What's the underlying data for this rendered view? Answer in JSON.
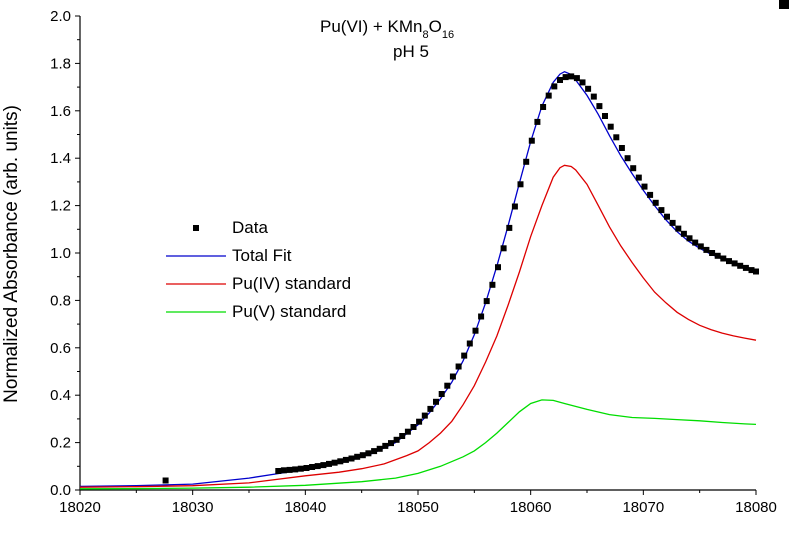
{
  "chart_data": {
    "type": "line",
    "title_main": "Pu(VI) + KMn",
    "title_sub8": "8",
    "title_O": "O",
    "title_sub16": "16",
    "subtitle": "pH 5",
    "xlabel": "",
    "ylabel": "Normalized Absorbance (arb. units)",
    "xlim": [
      18020,
      18080
    ],
    "ylim": [
      0.0,
      2.0
    ],
    "x_ticks": [
      18020,
      18030,
      18040,
      18050,
      18060,
      18070,
      18080
    ],
    "x_tick_labels": [
      "18020",
      "18030",
      "18040",
      "18050",
      "18060",
      "18070",
      "18080"
    ],
    "y_ticks": [
      0.0,
      0.2,
      0.4,
      0.6,
      0.8,
      1.0,
      1.2,
      1.4,
      1.6,
      1.8,
      2.0
    ],
    "y_tick_labels": [
      "0.0",
      "0.2",
      "0.4",
      "0.6",
      "0.8",
      "1.0",
      "1.2",
      "1.4",
      "1.6",
      "1.8",
      "2.0"
    ],
    "legend_position": "center-left",
    "series": [
      {
        "name": "Data",
        "kind": "scatter",
        "color": "#000000",
        "points": [
          [
            18027.6,
            0.04
          ],
          [
            18037.6,
            0.08
          ],
          [
            18038.1,
            0.083
          ],
          [
            18038.6,
            0.085
          ],
          [
            18039.1,
            0.087
          ],
          [
            18039.6,
            0.09
          ],
          [
            18040.1,
            0.093
          ],
          [
            18040.6,
            0.097
          ],
          [
            18041.1,
            0.101
          ],
          [
            18041.6,
            0.105
          ],
          [
            18042.1,
            0.11
          ],
          [
            18042.6,
            0.115
          ],
          [
            18043.1,
            0.121
          ],
          [
            18043.6,
            0.127
          ],
          [
            18044.1,
            0.133
          ],
          [
            18044.6,
            0.14
          ],
          [
            18045.1,
            0.147
          ],
          [
            18045.6,
            0.155
          ],
          [
            18046.1,
            0.164
          ],
          [
            18046.6,
            0.174
          ],
          [
            18047.1,
            0.186
          ],
          [
            18047.6,
            0.198
          ],
          [
            18048.1,
            0.212
          ],
          [
            18048.6,
            0.228
          ],
          [
            18049.1,
            0.246
          ],
          [
            18049.6,
            0.266
          ],
          [
            18050.1,
            0.288
          ],
          [
            18050.6,
            0.314
          ],
          [
            18051.1,
            0.342
          ],
          [
            18051.6,
            0.372
          ],
          [
            18052.1,
            0.405
          ],
          [
            18052.6,
            0.44
          ],
          [
            18053.1,
            0.479
          ],
          [
            18053.6,
            0.521
          ],
          [
            18054.1,
            0.567
          ],
          [
            18054.6,
            0.618
          ],
          [
            18055.1,
            0.672
          ],
          [
            18055.6,
            0.732
          ],
          [
            18056.1,
            0.797
          ],
          [
            18056.6,
            0.866
          ],
          [
            18057.1,
            0.94
          ],
          [
            18057.6,
            1.02
          ],
          [
            18058.1,
            1.106
          ],
          [
            18058.6,
            1.196
          ],
          [
            18059.1,
            1.29
          ],
          [
            18059.6,
            1.385
          ],
          [
            18060.1,
            1.474
          ],
          [
            18060.6,
            1.553
          ],
          [
            18061.1,
            1.616
          ],
          [
            18061.6,
            1.664
          ],
          [
            18062.1,
            1.703
          ],
          [
            18062.6,
            1.73
          ],
          [
            18063.1,
            1.742
          ],
          [
            18063.6,
            1.745
          ],
          [
            18064.1,
            1.738
          ],
          [
            18064.6,
            1.72
          ],
          [
            18065.1,
            1.693
          ],
          [
            18065.6,
            1.66
          ],
          [
            18066.1,
            1.62
          ],
          [
            18066.6,
            1.578
          ],
          [
            18067.1,
            1.533
          ],
          [
            18067.6,
            1.488
          ],
          [
            18068.1,
            1.443
          ],
          [
            18068.6,
            1.4
          ],
          [
            18069.1,
            1.358
          ],
          [
            18069.6,
            1.318
          ],
          [
            18070.1,
            1.28
          ],
          [
            18070.6,
            1.245
          ],
          [
            18071.1,
            1.212
          ],
          [
            18071.6,
            1.181
          ],
          [
            18072.1,
            1.153
          ],
          [
            18072.6,
            1.127
          ],
          [
            18073.1,
            1.103
          ],
          [
            18073.6,
            1.081
          ],
          [
            18074.1,
            1.062
          ],
          [
            18074.6,
            1.044
          ],
          [
            18075.1,
            1.028
          ],
          [
            18075.6,
            1.013
          ],
          [
            18076.1,
            1.0
          ],
          [
            18076.6,
            0.988
          ],
          [
            18077.1,
            0.977
          ],
          [
            18077.6,
            0.966
          ],
          [
            18078.1,
            0.956
          ],
          [
            18078.6,
            0.946
          ],
          [
            18079.1,
            0.937
          ],
          [
            18079.6,
            0.928
          ],
          [
            18080.0,
            0.922
          ]
        ]
      },
      {
        "name": "Total Fit",
        "kind": "line",
        "color": "#0000cc",
        "points": [
          [
            18020,
            0.015
          ],
          [
            18025,
            0.018
          ],
          [
            18030,
            0.025
          ],
          [
            18035,
            0.05
          ],
          [
            18038,
            0.072
          ],
          [
            18040,
            0.088
          ],
          [
            18042,
            0.103
          ],
          [
            18044,
            0.125
          ],
          [
            18046,
            0.155
          ],
          [
            18048,
            0.2
          ],
          [
            18050,
            0.275
          ],
          [
            18051,
            0.325
          ],
          [
            18052,
            0.385
          ],
          [
            18053,
            0.455
          ],
          [
            18054,
            0.545
          ],
          [
            18055,
            0.655
          ],
          [
            18056,
            0.79
          ],
          [
            18057,
            0.945
          ],
          [
            18058,
            1.115
          ],
          [
            18059,
            1.295
          ],
          [
            18060,
            1.47
          ],
          [
            18061,
            1.62
          ],
          [
            18062,
            1.72
          ],
          [
            18062.6,
            1.755
          ],
          [
            18063,
            1.765
          ],
          [
            18063.5,
            1.755
          ],
          [
            18064,
            1.73
          ],
          [
            18065,
            1.665
          ],
          [
            18066,
            1.585
          ],
          [
            18067,
            1.495
          ],
          [
            18068,
            1.41
          ],
          [
            18069,
            1.335
          ],
          [
            18070,
            1.265
          ],
          [
            18071,
            1.2
          ],
          [
            18072,
            1.14
          ],
          [
            18073,
            1.09
          ],
          [
            18074,
            1.05
          ],
          [
            18075,
            1.02
          ],
          [
            18076,
            0.995
          ],
          [
            18077,
            0.975
          ],
          [
            18078,
            0.955
          ],
          [
            18079,
            0.94
          ],
          [
            18080,
            0.925
          ]
        ]
      },
      {
        "name": "Pu(IV) standard",
        "kind": "line",
        "color": "#dd0000",
        "points": [
          [
            18020,
            0.012
          ],
          [
            18025,
            0.014
          ],
          [
            18030,
            0.018
          ],
          [
            18035,
            0.03
          ],
          [
            18040,
            0.06
          ],
          [
            18043,
            0.075
          ],
          [
            18045,
            0.09
          ],
          [
            18047,
            0.11
          ],
          [
            18049,
            0.145
          ],
          [
            18050,
            0.165
          ],
          [
            18051,
            0.2
          ],
          [
            18052,
            0.24
          ],
          [
            18053,
            0.29
          ],
          [
            18054,
            0.36
          ],
          [
            18055,
            0.44
          ],
          [
            18056,
            0.54
          ],
          [
            18057,
            0.65
          ],
          [
            18058,
            0.78
          ],
          [
            18059,
            0.92
          ],
          [
            18060,
            1.07
          ],
          [
            18061,
            1.2
          ],
          [
            18062,
            1.32
          ],
          [
            18062.6,
            1.36
          ],
          [
            18063,
            1.37
          ],
          [
            18063.6,
            1.365
          ],
          [
            18064,
            1.35
          ],
          [
            18065,
            1.29
          ],
          [
            18066,
            1.2
          ],
          [
            18067,
            1.11
          ],
          [
            18068,
            1.03
          ],
          [
            18069,
            0.96
          ],
          [
            18070,
            0.895
          ],
          [
            18071,
            0.835
          ],
          [
            18072,
            0.79
          ],
          [
            18073,
            0.75
          ],
          [
            18074,
            0.72
          ],
          [
            18075,
            0.695
          ],
          [
            18076,
            0.677
          ],
          [
            18077,
            0.662
          ],
          [
            18078,
            0.65
          ],
          [
            18079,
            0.641
          ],
          [
            18080,
            0.632
          ]
        ]
      },
      {
        "name": "Pu(V) standard",
        "kind": "line",
        "color": "#00dd00",
        "points": [
          [
            18020,
            0.005
          ],
          [
            18025,
            0.006
          ],
          [
            18030,
            0.008
          ],
          [
            18035,
            0.012
          ],
          [
            18040,
            0.02
          ],
          [
            18045,
            0.035
          ],
          [
            18048,
            0.05
          ],
          [
            18050,
            0.07
          ],
          [
            18052,
            0.1
          ],
          [
            18054,
            0.14
          ],
          [
            18055,
            0.165
          ],
          [
            18056,
            0.2
          ],
          [
            18057,
            0.24
          ],
          [
            18058,
            0.285
          ],
          [
            18059,
            0.33
          ],
          [
            18060,
            0.365
          ],
          [
            18061,
            0.38
          ],
          [
            18062,
            0.378
          ],
          [
            18063,
            0.365
          ],
          [
            18065,
            0.34
          ],
          [
            18067,
            0.318
          ],
          [
            18069,
            0.306
          ],
          [
            18071,
            0.302
          ],
          [
            18073,
            0.297
          ],
          [
            18075,
            0.292
          ],
          [
            18077,
            0.285
          ],
          [
            18079,
            0.279
          ],
          [
            18080,
            0.277
          ]
        ]
      }
    ]
  }
}
